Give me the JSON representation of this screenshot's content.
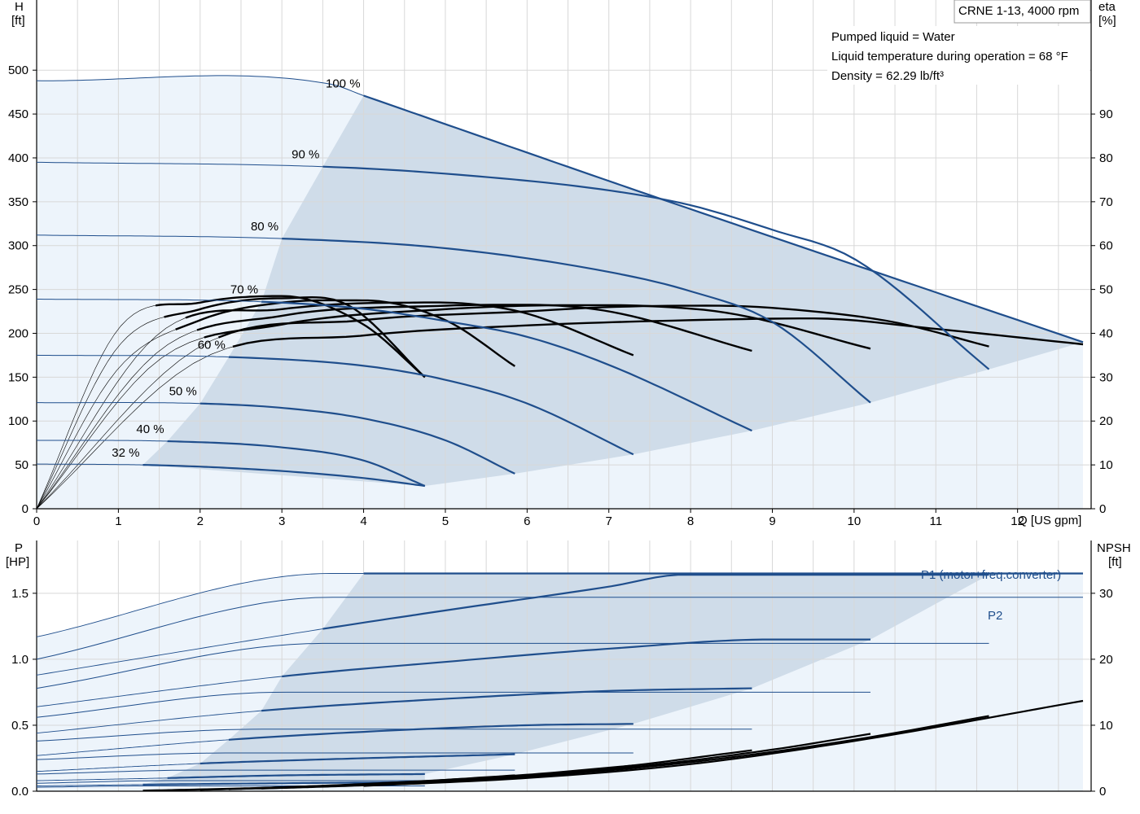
{
  "chart_data": [
    {
      "type": "line",
      "title": "CRNE 1-13, 4000 rpm",
      "annotations": [
        "Pumped liquid = Water",
        "Liquid temperature during operation = 68 °F",
        "Density = 62.29 lb/ft³"
      ],
      "xlabel": "Q [US gpm]",
      "ylabel_left": [
        "H",
        "[ft]"
      ],
      "ylabel_right": [
        "eta",
        "[%]"
      ],
      "xlim": [
        0,
        12.9
      ],
      "ylim_left": [
        0,
        580
      ],
      "ylim_right": [
        0,
        116
      ],
      "xticks": [
        0,
        1,
        2,
        3,
        4,
        5,
        6,
        7,
        8,
        9,
        10,
        11,
        12
      ],
      "yticks_left": [
        0,
        50,
        100,
        150,
        200,
        250,
        300,
        350,
        400,
        450,
        500
      ],
      "yticks_right": [
        0,
        10,
        20,
        30,
        40,
        50,
        60,
        70,
        80,
        90
      ],
      "grid": true,
      "shaded_region": "operating range",
      "head_series": [
        {
          "name": "100 %",
          "x": [
            0,
            3.6,
            4.0,
            7.8,
            12.8
          ],
          "y": [
            488,
            484,
            471,
            348,
            190
          ],
          "op_start": 4.0,
          "op_end": 12.8
        },
        {
          "name": "90 %",
          "x": [
            0,
            3.5,
            5,
            7,
            8,
            9,
            10,
            11.65
          ],
          "y": [
            395,
            390,
            382,
            363,
            346,
            318,
            285,
            159
          ],
          "op_start": 3.5,
          "op_end": 11.65
        },
        {
          "name": "80 %",
          "x": [
            0,
            3.0,
            5,
            7,
            8,
            9,
            10.2
          ],
          "y": [
            312,
            308,
            297,
            270,
            248,
            213,
            121
          ],
          "op_start": 3.0,
          "op_end": 10.2
        },
        {
          "name": "70 %",
          "x": [
            0,
            2.75,
            4,
            5,
            6,
            7,
            8.75
          ],
          "y": [
            239,
            236,
            228,
            214,
            196,
            164,
            89
          ],
          "op_start": 2.75,
          "op_end": 8.75
        },
        {
          "name": "60 %",
          "x": [
            0,
            2.35,
            4,
            5,
            6,
            7.3
          ],
          "y": [
            175,
            173,
            163,
            147,
            120,
            62
          ],
          "op_start": 2.35,
          "op_end": 7.3
        },
        {
          "name": "50 %",
          "x": [
            0,
            2.0,
            3,
            4,
            5,
            5.85
          ],
          "y": [
            121,
            120,
            115,
            103,
            78,
            40
          ],
          "op_start": 2.0,
          "op_end": 5.85
        },
        {
          "name": "40 %",
          "x": [
            0,
            1.6,
            3,
            4,
            4.75
          ],
          "y": [
            78,
            77,
            70,
            55,
            26
          ],
          "op_start": 1.6,
          "op_end": 4.75
        },
        {
          "name": "32 %",
          "x": [
            0,
            1.3,
            2,
            3,
            4,
            4.75
          ],
          "y": [
            51,
            50,
            48,
            43,
            35,
            26
          ],
          "op_start": 1.3,
          "op_end": 4.75
        }
      ],
      "efficiency_series": [
        {
          "x": [
            0,
            2,
            4,
            6,
            8,
            9.5,
            11,
            12.8
          ],
          "y": [
            0,
            34,
            39.5,
            41.8,
            43,
            43.4,
            41,
            37.5
          ],
          "op_start": 4.0,
          "op_end": 12.8
        },
        {
          "x": [
            0,
            2,
            4,
            6,
            7,
            8.3,
            9.5,
            10.5,
            11.65
          ],
          "y": [
            0,
            37,
            43,
            45,
            46,
            46.3,
            45,
            42.5,
            37
          ],
          "op_start": 3.5,
          "op_end": 11.65
        },
        {
          "x": [
            0,
            1.5,
            3,
            5,
            6.5,
            7.5,
            8.5,
            10.2
          ],
          "y": [
            0,
            34,
            42,
            45.5,
            46.4,
            46.2,
            44.5,
            36.5
          ],
          "op_start": 3.0,
          "op_end": 10.2
        },
        {
          "x": [
            0,
            1.5,
            3,
            5,
            6,
            7,
            8.75
          ],
          "y": [
            0,
            36,
            44,
            46.3,
            46.5,
            45,
            36
          ],
          "op_start": 2.75,
          "op_end": 8.75
        },
        {
          "x": [
            0,
            1.5,
            3,
            4.5,
            5.3,
            6,
            7.3
          ],
          "y": [
            0,
            40,
            45.5,
            47,
            46.7,
            44.5,
            35
          ],
          "op_start": 2.35,
          "op_end": 7.3
        },
        {
          "x": [
            0,
            1,
            2,
            3,
            4,
            5,
            5.85
          ],
          "y": [
            0,
            32,
            43,
            47,
            47.5,
            43,
            32.5
          ],
          "op_start": 2.0,
          "op_end": 5.85
        },
        {
          "x": [
            0,
            1,
            2,
            3,
            3.8,
            4.75
          ],
          "y": [
            0,
            37,
            45.5,
            48,
            46.5,
            30
          ],
          "op_start": 1.6,
          "op_end": 4.75
        },
        {
          "x": [
            0,
            1,
            2,
            3,
            4,
            4.75
          ],
          "y": [
            0,
            41,
            47,
            48.5,
            42,
            30
          ],
          "op_start": 1.3,
          "op_end": 4.75
        }
      ]
    },
    {
      "type": "line",
      "xlim": [
        0,
        12.9
      ],
      "ylabel_left": [
        "P",
        "[HP]"
      ],
      "ylabel_right": [
        "NPSH",
        "[ft]"
      ],
      "ylim_left": [
        0,
        1.9
      ],
      "ylim_right": [
        0,
        38
      ],
      "yticks_left": [
        "0.0",
        "0.5",
        "1.0",
        "1.5"
      ],
      "yticks_left_values": [
        0,
        0.5,
        1.0,
        1.5
      ],
      "yticks_right": [
        0,
        10,
        20,
        30
      ],
      "grid": true,
      "series_labels": {
        "p1": "P1 (motor+freq.converter)",
        "p2": "P2"
      },
      "p1_series": [
        {
          "x": [
            0,
            3.6,
            4.0,
            12.8
          ],
          "y": [
            1.17,
            1.65,
            1.65,
            1.65
          ],
          "op_start": 4.0,
          "op_end": 12.8
        },
        {
          "x": [
            0,
            3.5,
            5,
            7,
            7.9,
            11.65
          ],
          "y": [
            0.88,
            1.23,
            1.37,
            1.55,
            1.64,
            1.64
          ],
          "op_start": 3.5,
          "op_end": 11.65
        },
        {
          "x": [
            0,
            3.0,
            5,
            7,
            9,
            10.2
          ],
          "y": [
            0.64,
            0.87,
            0.98,
            1.08,
            1.15,
            1.15
          ],
          "op_start": 3.0,
          "op_end": 10.2
        },
        {
          "x": [
            0,
            2.75,
            5,
            7,
            8.75
          ],
          "y": [
            0.44,
            0.61,
            0.7,
            0.76,
            0.78
          ],
          "op_start": 2.75,
          "op_end": 8.75
        },
        {
          "x": [
            0,
            2.35,
            4,
            6,
            7.3
          ],
          "y": [
            0.27,
            0.39,
            0.45,
            0.5,
            0.51
          ],
          "op_start": 2.35,
          "op_end": 7.3
        },
        {
          "x": [
            0,
            2.0,
            4,
            5.85
          ],
          "y": [
            0.15,
            0.21,
            0.25,
            0.28
          ],
          "op_start": 2.0,
          "op_end": 5.85
        },
        {
          "x": [
            0,
            1.6,
            3,
            4.75
          ],
          "y": [
            0.08,
            0.1,
            0.12,
            0.13
          ],
          "op_start": 1.6,
          "op_end": 4.75
        },
        {
          "x": [
            0,
            1.3,
            3,
            4.75
          ],
          "y": [
            0.04,
            0.05,
            0.06,
            0.07
          ],
          "op_start": 1.3,
          "op_end": 4.75
        }
      ],
      "p2_series": [
        {
          "x": [
            0,
            3.6,
            12.8
          ],
          "y": [
            1.0,
            1.47,
            1.47
          ]
        },
        {
          "x": [
            0,
            3.5,
            11.65
          ],
          "y": [
            0.78,
            1.12,
            1.12
          ]
        },
        {
          "x": [
            0,
            3.0,
            10.2
          ],
          "y": [
            0.56,
            0.75,
            0.75
          ]
        },
        {
          "x": [
            0,
            2.75,
            8.75
          ],
          "y": [
            0.38,
            0.47,
            0.47
          ]
        },
        {
          "x": [
            0,
            2.35,
            7.3
          ],
          "y": [
            0.24,
            0.29,
            0.29
          ]
        },
        {
          "x": [
            0,
            2.0,
            5.85
          ],
          "y": [
            0.13,
            0.16,
            0.16
          ]
        },
        {
          "x": [
            0,
            1.6,
            4.75
          ],
          "y": [
            0.06,
            0.08,
            0.08
          ]
        },
        {
          "x": [
            0,
            1.3,
            4.75
          ],
          "y": [
            0.03,
            0.04,
            0.04
          ]
        }
      ],
      "npsh_series": [
        {
          "x": [
            4.0,
            6,
            8,
            10,
            12.8
          ],
          "y": [
            0.8,
            2.0,
            4.1,
            7.6,
            13.7
          ]
        },
        {
          "x": [
            3.5,
            6,
            8,
            10,
            11.65
          ],
          "y": [
            0.7,
            2.2,
            4.4,
            7.8,
            11.4
          ]
        },
        {
          "x": [
            3.0,
            5,
            7,
            9,
            10.2
          ],
          "y": [
            0.5,
            1.6,
            3.3,
            6.3,
            8.7
          ]
        },
        {
          "x": [
            2.75,
            5,
            7,
            8.75
          ],
          "y": [
            0.4,
            1.5,
            3.5,
            6.2
          ]
        },
        {
          "x": [
            2.35,
            4,
            6,
            7.3
          ],
          "y": [
            0.3,
            1.1,
            2.5,
            3.9
          ]
        },
        {
          "x": [
            2.0,
            4,
            5.85
          ],
          "y": [
            0.2,
            1.0,
            2.4
          ]
        },
        {
          "x": [
            1.6,
            3,
            4.75
          ],
          "y": [
            0.15,
            0.6,
            1.4
          ]
        },
        {
          "x": [
            1.3,
            3,
            4.75
          ],
          "y": [
            0.1,
            0.5,
            1.2
          ]
        }
      ]
    }
  ]
}
